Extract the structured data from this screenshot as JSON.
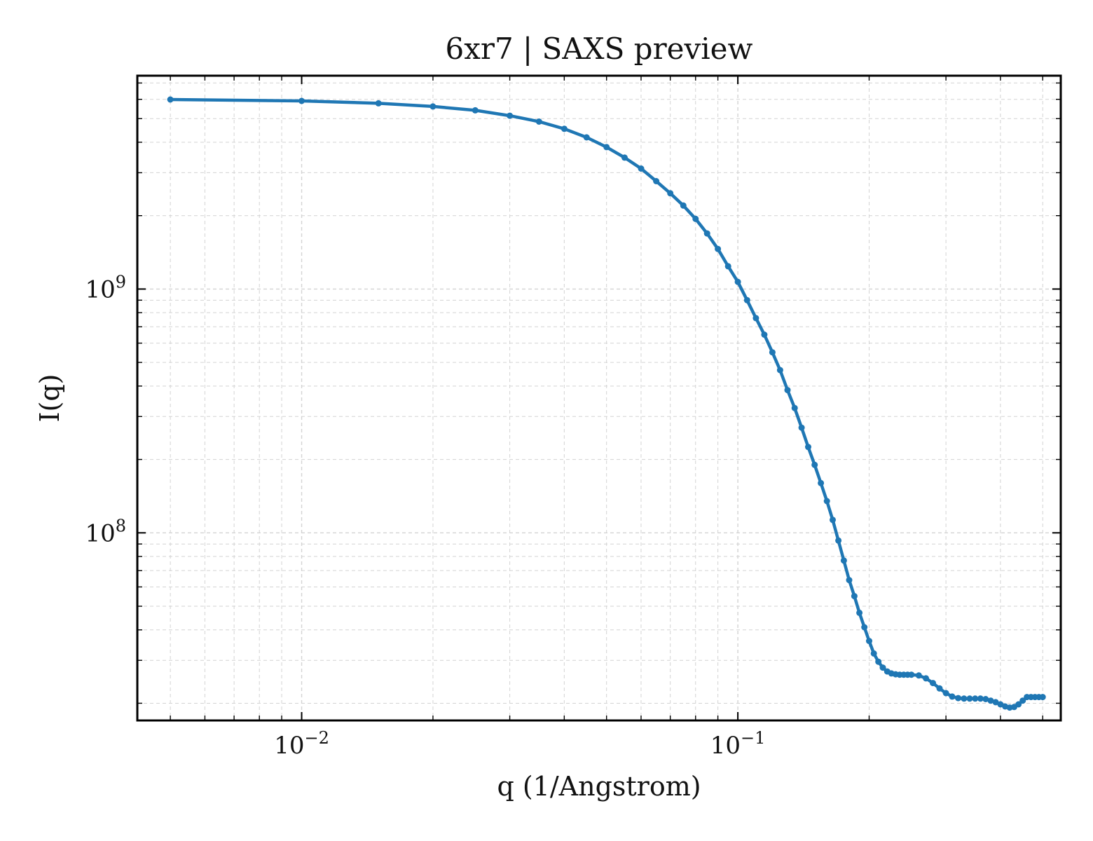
{
  "chart_data": {
    "type": "line",
    "title": "6xr7 | SAXS preview",
    "xlabel": "q (1/Angstrom)",
    "ylabel": "I(q)",
    "xscale": "log",
    "yscale": "log",
    "xlim": [
      0.0042,
      0.55
    ],
    "ylim": [
      17000000,
      7500000000
    ],
    "grid": true,
    "line_color": "#1f77b4",
    "x_ticks": [
      {
        "value": 0.01,
        "base": "10",
        "exp": "−2"
      },
      {
        "value": 0.1,
        "base": "10",
        "exp": "−1"
      }
    ],
    "y_ticks": [
      {
        "value": 100000000,
        "base": "10",
        "exp": "8"
      },
      {
        "value": 1000000000,
        "base": "10",
        "exp": "9"
      }
    ],
    "series": [
      {
        "x": [
          0.005,
          0.01,
          0.015,
          0.02,
          0.025,
          0.03,
          0.035,
          0.04,
          0.045,
          0.05,
          0.055,
          0.06,
          0.065,
          0.07,
          0.075,
          0.08,
          0.085,
          0.09,
          0.095,
          0.1,
          0.105,
          0.11,
          0.115,
          0.12,
          0.125,
          0.13,
          0.135,
          0.14,
          0.145,
          0.15,
          0.155,
          0.16,
          0.165,
          0.17,
          0.175,
          0.18,
          0.185,
          0.19,
          0.195,
          0.2,
          0.205,
          0.21,
          0.215,
          0.22,
          0.225,
          0.23,
          0.235,
          0.24,
          0.245,
          0.25,
          0.26,
          0.27,
          0.28,
          0.29,
          0.3,
          0.31,
          0.32,
          0.33,
          0.34,
          0.35,
          0.36,
          0.37,
          0.38,
          0.39,
          0.4,
          0.41,
          0.42,
          0.43,
          0.44,
          0.45,
          0.46,
          0.47,
          0.48,
          0.49,
          0.5
        ],
        "y": [
          5990000000,
          5910000000,
          5780000000,
          5610000000,
          5410000000,
          5140000000,
          4860000000,
          4540000000,
          4190000000,
          3820000000,
          3460000000,
          3120000000,
          2770000000,
          2470000000,
          2200000000,
          1940000000,
          1690000000,
          1460000000,
          1240000000,
          1070000000,
          900000000,
          760000000,
          650000000,
          550000000,
          465000000,
          385000000,
          325000000,
          270000000,
          225000000,
          190000000,
          160000000,
          135000000,
          113000000,
          93000000,
          77000000,
          64000000,
          55000000,
          47000000,
          41000000,
          36000000,
          32000000,
          29600000,
          28000000,
          27000000,
          26500000,
          26300000,
          26200000,
          26200000,
          26200000,
          26200000,
          26000000,
          25300000,
          24200000,
          23000000,
          22000000,
          21300000,
          21000000,
          20900000,
          20900000,
          20900000,
          20900000,
          20800000,
          20500000,
          20200000,
          19800000,
          19400000,
          19200000,
          19300000,
          19800000,
          20500000,
          21200000,
          21200000,
          21200000,
          21200000,
          21200000
        ]
      }
    ]
  }
}
